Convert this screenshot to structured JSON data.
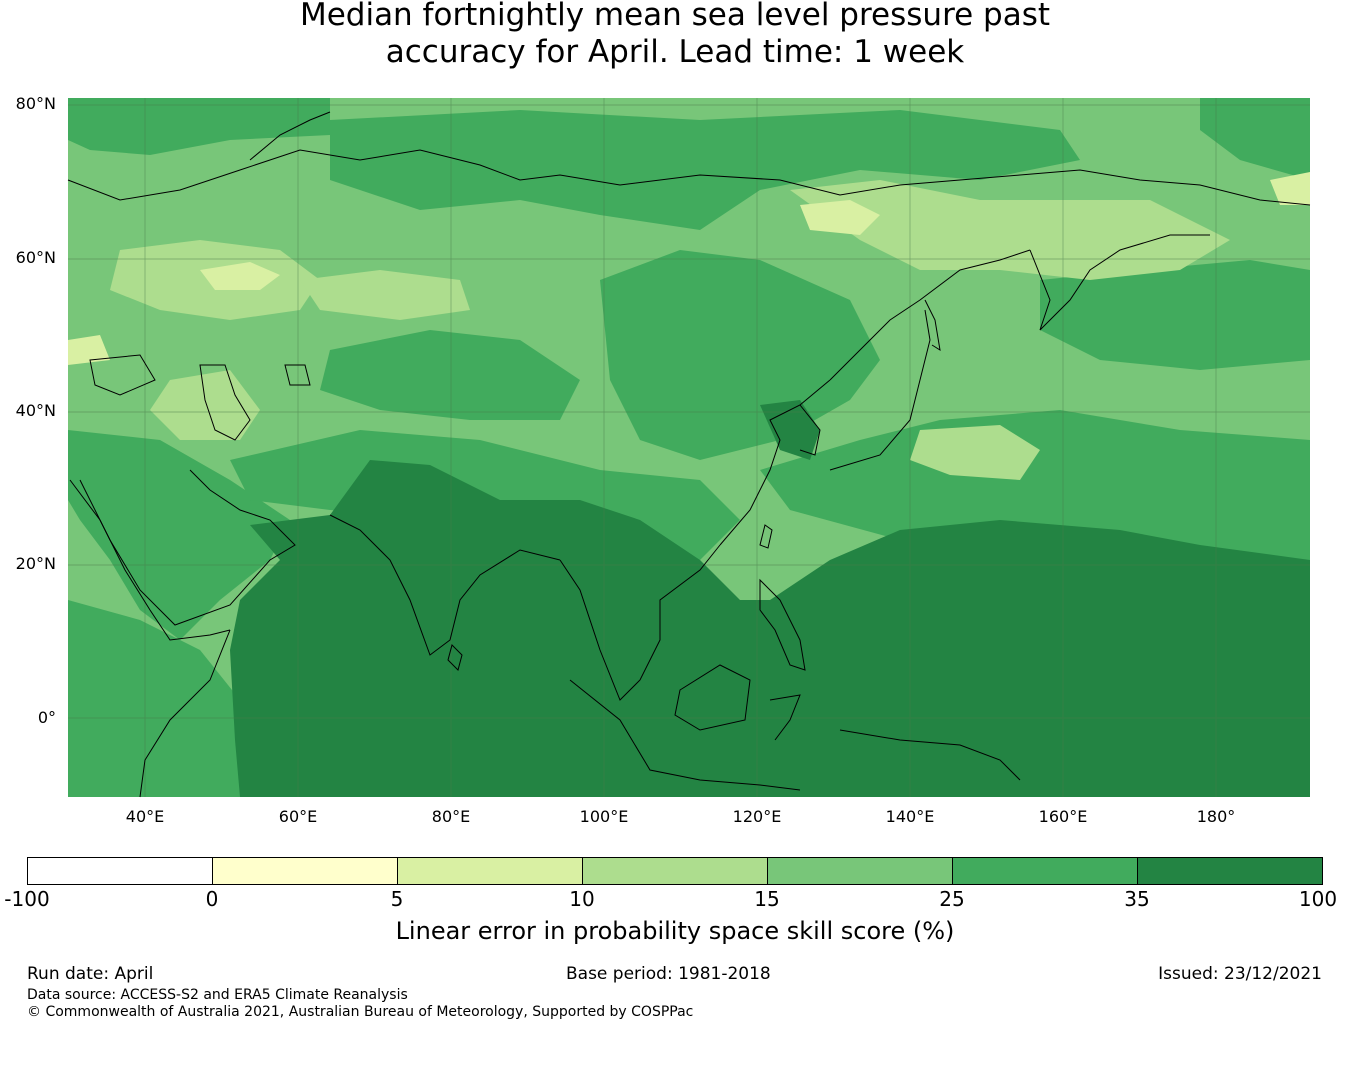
{
  "title": {
    "line1": "Median fortnightly mean sea level pressure past",
    "line2": "accuracy for April. Lead time: 1 week"
  },
  "map": {
    "lon_range": [
      30,
      192
    ],
    "lat_range": [
      -10,
      82
    ],
    "lat_labels": [
      "80°N",
      "60°N",
      "40°N",
      "20°N",
      "0°"
    ],
    "lon_labels": [
      "40°E",
      "60°E",
      "80°E",
      "100°E",
      "120°E",
      "140°E",
      "160°E",
      "180°"
    ]
  },
  "colorbar": {
    "colors": [
      "#ffffff",
      "#ffffcc",
      "#d9f0a3",
      "#addd8e",
      "#78c679",
      "#41ab5d",
      "#238443"
    ],
    "ticks": [
      "-100",
      "0",
      "5",
      "10",
      "15",
      "25",
      "35",
      "100"
    ],
    "label": "Linear error in probability space skill score (%)"
  },
  "footer": {
    "run_date": "Run date: April",
    "base_period": "Base period: 1981-2018",
    "issued": "Issued: 23/12/2021",
    "data_source": "Data source: ACCESS-S2 and ERA5 Climate Reanalysis",
    "copyright": "© Commonwealth of Australia 2021, Australian Bureau of Meteorology, Supported by COSPPac"
  }
}
